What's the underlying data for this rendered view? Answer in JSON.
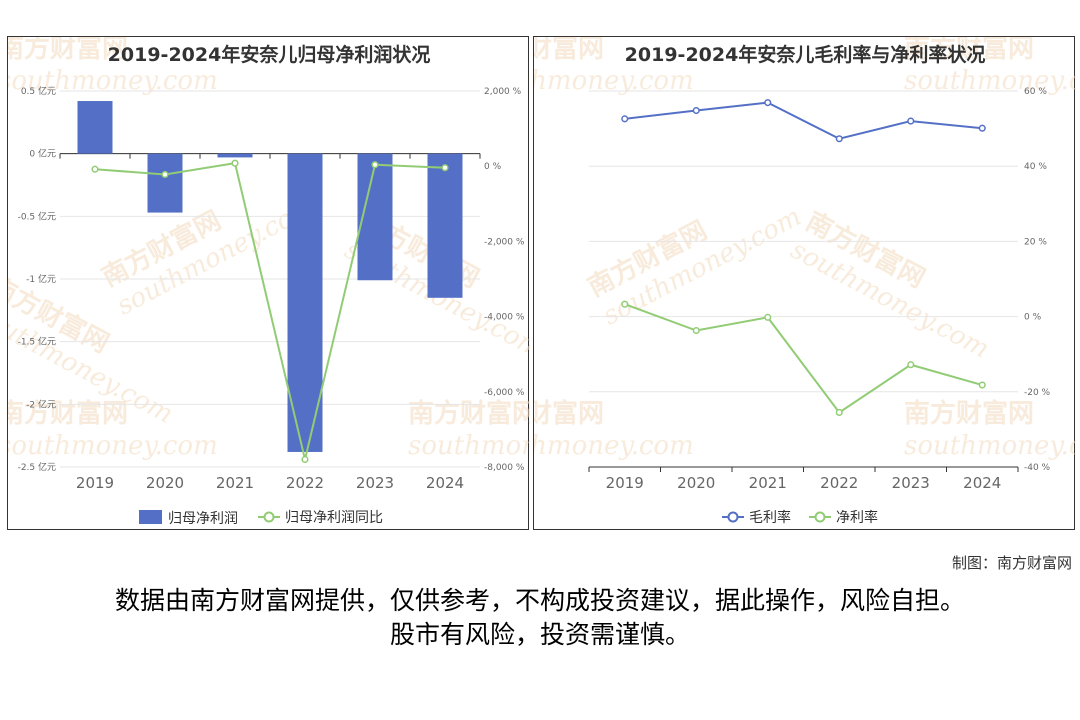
{
  "credit": "制图：南方财富网",
  "disclaimer": {
    "line1": "数据由南方财富网提供，仅供参考，不构成投资建议，据此操作，风险自担。",
    "line2": "股市有风险，投资需谨慎。"
  },
  "watermark": {
    "cn": "南方财富网",
    "en": "southmoney.com"
  },
  "colors": {
    "bar": "#5470c6",
    "line_green": "#91cc75",
    "line_blue": "#5470c6",
    "grid": "#e6e6e6",
    "axis_text": "#666666",
    "watermark": "#f3dcc0"
  },
  "chart_data": [
    {
      "type": "bar",
      "title": "2019-2024年安奈儿归母净利润状况",
      "categories": [
        "2019",
        "2020",
        "2021",
        "2022",
        "2023",
        "2024"
      ],
      "left_axis": {
        "ylim": [
          -2.5,
          0.5
        ],
        "ticks": [
          "0.5 亿元",
          "0 亿元",
          "-0.5 亿元",
          "-1 亿元",
          "-1.5 亿元",
          "-2 亿元",
          "-2.5 亿元"
        ]
      },
      "right_axis": {
        "ylim": [
          -8000,
          2000
        ],
        "ticks": [
          "2,000 %",
          "0 %",
          "-2,000 %",
          "-4,000 %",
          "-6,000 %",
          "-8,000 %"
        ]
      },
      "series": [
        {
          "name": "归母净利润",
          "type": "bar",
          "axis": "left",
          "values": [
            0.42,
            -0.47,
            -0.03,
            -2.38,
            -1.01,
            -1.15
          ]
        },
        {
          "name": "归母净利润同比",
          "type": "line",
          "axis": "right",
          "values": [
            -80,
            -220,
            80,
            -7800,
            40,
            -40
          ]
        }
      ],
      "legend_position": "bottom"
    },
    {
      "type": "line",
      "title": "2019-2024年安奈儿毛利率与净利率状况",
      "categories": [
        "2019",
        "2020",
        "2021",
        "2022",
        "2023",
        "2024"
      ],
      "right_axis": {
        "ylim": [
          -40,
          60
        ],
        "ticks": [
          "60 %",
          "40 %",
          "20 %",
          "0 %",
          "-20 %",
          "-40 %"
        ]
      },
      "series": [
        {
          "name": "毛利率",
          "axis": "right",
          "values": [
            52.6,
            54.8,
            56.9,
            47.3,
            52.0,
            50.1
          ]
        },
        {
          "name": "净利率",
          "axis": "right",
          "values": [
            3.3,
            -3.7,
            -0.2,
            -25.5,
            -12.8,
            -18.2
          ]
        }
      ],
      "legend_position": "bottom"
    }
  ]
}
